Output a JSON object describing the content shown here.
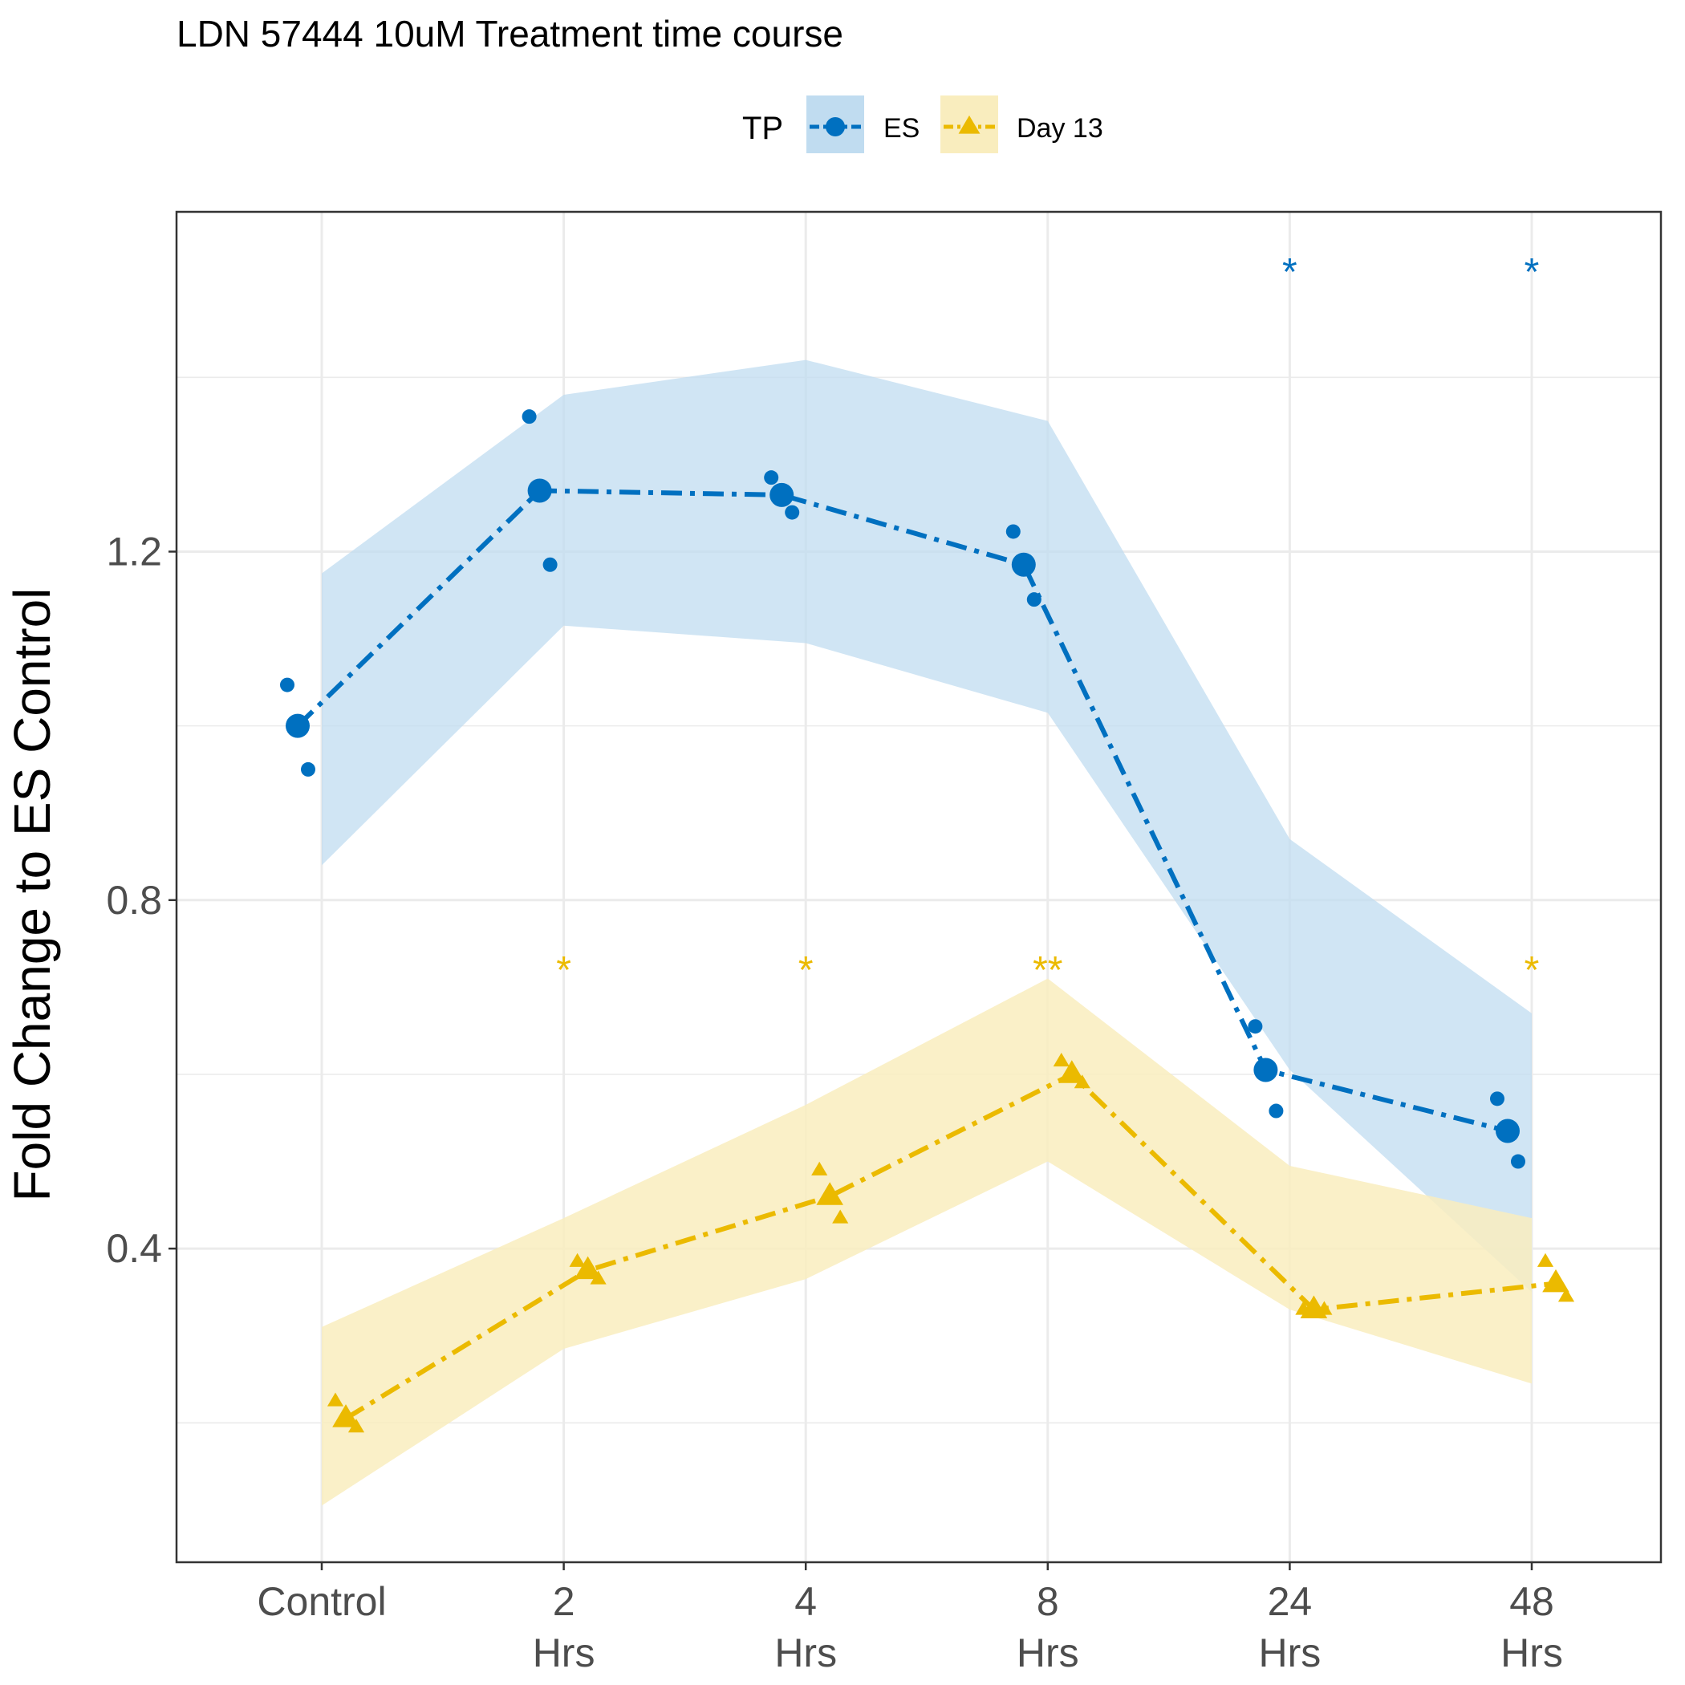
{
  "chart_data": {
    "type": "line",
    "title": "LDN 57444 10uM Treatment time course",
    "xlabel": "",
    "ylabel": "Fold Change to ES Control",
    "categories": [
      [
        "Control"
      ],
      [
        "2",
        "Hrs"
      ],
      [
        "4",
        "Hrs"
      ],
      [
        "8",
        "Hrs"
      ],
      [
        "24",
        "Hrs"
      ],
      [
        "48",
        "Hrs"
      ]
    ],
    "ylim": [
      0.04,
      1.59
    ],
    "yticks": [
      0.4,
      0.8,
      1.2
    ],
    "ytick_labels": [
      "0.4",
      "0.8",
      "1.2"
    ],
    "grid": true,
    "legend": {
      "title": "TP",
      "position": "top"
    },
    "series": [
      {
        "name": "ES",
        "color": "#0070C0",
        "fill": "#C0DCF0",
        "marker": "circle",
        "means": [
          1.0,
          1.27,
          1.265,
          1.185,
          0.605,
          0.535
        ],
        "ribbon_lower": [
          0.84,
          1.115,
          1.095,
          1.015,
          0.605,
          0.35
        ],
        "ribbon_upper": [
          1.175,
          1.38,
          1.42,
          1.35,
          0.87,
          0.67
        ],
        "points": [
          {
            "x": 0,
            "y": 1.047
          },
          {
            "x": 0,
            "y": 0.95
          },
          {
            "x": 1,
            "y": 1.355
          },
          {
            "x": 1,
            "y": 1.185
          },
          {
            "x": 2,
            "y": 1.285
          },
          {
            "x": 2,
            "y": 1.245
          },
          {
            "x": 3,
            "y": 1.223
          },
          {
            "x": 3,
            "y": 1.145
          },
          {
            "x": 4,
            "y": 0.655
          },
          {
            "x": 4,
            "y": 0.558
          },
          {
            "x": 5,
            "y": 0.572
          },
          {
            "x": 5,
            "y": 0.5
          }
        ],
        "significance": [
          "",
          "",
          "",
          "",
          "*",
          "*"
        ]
      },
      {
        "name": "Day 13",
        "color": "#EBBA00",
        "fill": "#F9EDBE",
        "marker": "triangle",
        "means": [
          0.205,
          0.375,
          0.46,
          0.6,
          0.33,
          0.36
        ],
        "ribbon_lower": [
          0.105,
          0.285,
          0.365,
          0.5,
          0.33,
          0.245
        ],
        "ribbon_upper": [
          0.31,
          0.435,
          0.565,
          0.71,
          0.495,
          0.435
        ],
        "points": [
          {
            "x": 0,
            "y": 0.225
          },
          {
            "x": 0,
            "y": 0.195
          },
          {
            "x": 1,
            "y": 0.385
          },
          {
            "x": 1,
            "y": 0.365
          },
          {
            "x": 2,
            "y": 0.49
          },
          {
            "x": 2,
            "y": 0.435
          },
          {
            "x": 3,
            "y": 0.615
          },
          {
            "x": 3,
            "y": 0.59
          },
          {
            "x": 4,
            "y": 0.33
          },
          {
            "x": 4,
            "y": 0.33
          },
          {
            "x": 5,
            "y": 0.385
          },
          {
            "x": 5,
            "y": 0.345
          }
        ],
        "significance": [
          "",
          "*",
          "*",
          "**",
          "",
          "*"
        ]
      }
    ]
  }
}
